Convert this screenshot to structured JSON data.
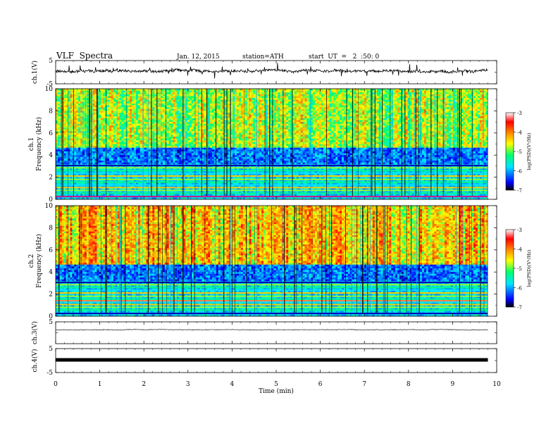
{
  "header": {
    "title": "VLF  Spectra",
    "date": "Jan. 12, 2015",
    "station": "station=ATH",
    "start": "start  UT  =   2  :50: 0"
  },
  "chart_data": [
    {
      "type": "line",
      "ylabel": "ch.1(V)",
      "ylim": [
        -5,
        5
      ],
      "yticks": [
        "5",
        "-5"
      ]
    },
    {
      "type": "heatmap",
      "ylabel_top": "ch.1",
      "ylabel": "Frequency (kHz)",
      "ylim": [
        0,
        10
      ],
      "yticks": [
        "0",
        "2",
        "4",
        "6",
        "8",
        "10"
      ],
      "colorbar": {
        "label": "log(PSD)(V²/Hz)",
        "range": [
          -7,
          -3
        ],
        "ticks": [
          "-3",
          "-4",
          "-5",
          "-6",
          "-7"
        ]
      }
    },
    {
      "type": "heatmap",
      "ylabel_top": "ch.2",
      "ylabel": "Frequency (kHz)",
      "ylim": [
        0,
        10
      ],
      "yticks": [
        "0",
        "2",
        "4",
        "6",
        "8",
        "10"
      ],
      "colorbar": {
        "label": "log(PSD)(V²/Hz)",
        "range": [
          -7,
          -3
        ],
        "ticks": [
          "-3",
          "-4",
          "-5",
          "-6",
          "-7"
        ]
      }
    },
    {
      "type": "line",
      "ylabel": "ch.3(V)",
      "ylim": [
        -5,
        5
      ],
      "yticks": [
        "5"
      ]
    },
    {
      "type": "line",
      "ylabel": "ch.4(V)",
      "ylim": [
        -5,
        5
      ],
      "yticks": [
        "5",
        "-5"
      ]
    }
  ],
  "x_axis": {
    "label": "Time  (min)",
    "range": [
      0,
      10
    ],
    "ticks": [
      "0",
      "1",
      "2",
      "3",
      "4",
      "5",
      "6",
      "7",
      "8",
      "9",
      "10"
    ],
    "data_end": 9.8
  }
}
